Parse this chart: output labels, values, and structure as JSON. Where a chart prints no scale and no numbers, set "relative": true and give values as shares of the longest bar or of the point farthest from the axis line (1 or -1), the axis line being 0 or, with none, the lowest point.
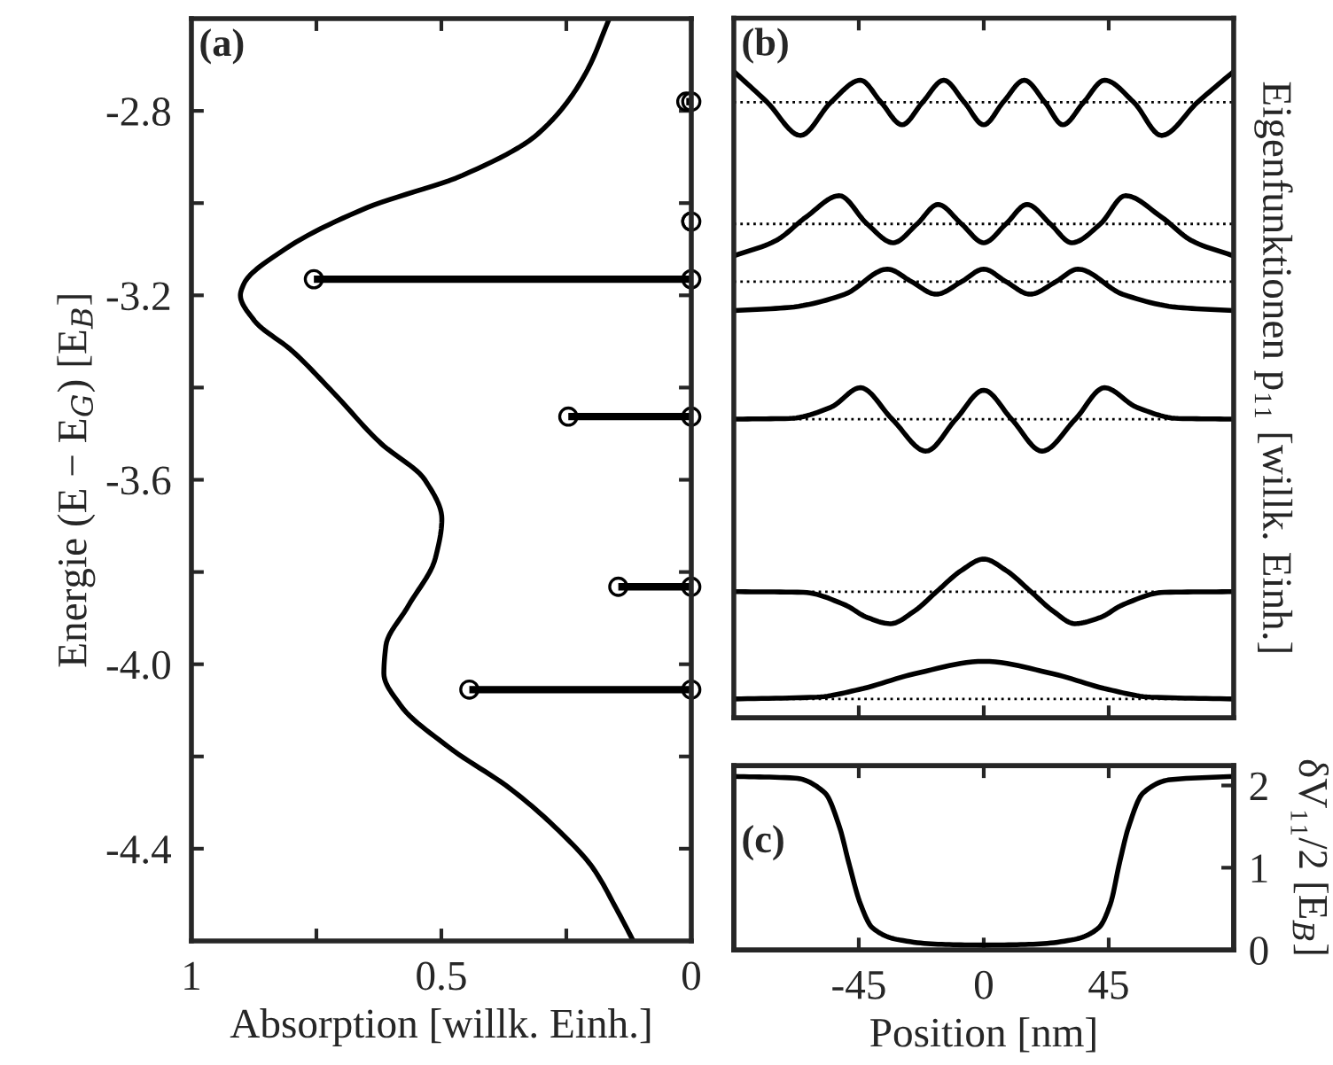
{
  "chart_data": [
    {
      "type": "line",
      "orientation": "horizontal",
      "xlabel": "Absorption [willk. Einh.]",
      "ylabel": "Energie (E − E$_{G}$) [E$_{B}$]",
      "xlim": [
        1,
        0
      ],
      "xticks": [
        1,
        {
          "value": 0.75,
          "label": null
        },
        0.5,
        {
          "value": 0.25,
          "label": null
        },
        0
      ],
      "ylim": [
        -4.6,
        -2.6
      ],
      "yticks": [
        -2.8,
        {
          "value": -3.0,
          "label": null
        },
        -3.2,
        {
          "value": -3.4,
          "label": null
        },
        -3.6,
        {
          "value": -3.8,
          "label": null
        },
        {
          "value": -4.0,
          "label": "-4.0"
        },
        {
          "value": -4.2,
          "label": null
        },
        -4.4
      ],
      "annotations": [
        "(a)"
      ],
      "series": [
        {
          "color": "#000000",
          "x": [
            -2.6,
            -2.72,
            -2.85,
            -2.94,
            -3.01,
            -3.1,
            -3.175,
            -3.2,
            -3.255,
            -3.32,
            -3.41,
            -3.52,
            -3.6,
            -3.685,
            -3.77,
            -3.875,
            -3.96,
            -4.02,
            -4.09,
            -4.18,
            -4.27,
            -4.36,
            -4.44,
            -4.53,
            -4.6
          ],
          "values": [
            0.164,
            0.212,
            0.307,
            0.458,
            0.649,
            0.813,
            0.895,
            0.902,
            0.874,
            0.799,
            0.717,
            0.622,
            0.533,
            0.499,
            0.512,
            0.567,
            0.611,
            0.615,
            0.581,
            0.485,
            0.362,
            0.266,
            0.198,
            0.15,
            0.116
          ]
        },
        {
          "type": "lollipop",
          "color": "#000000",
          "marker": "circle",
          "x": [
            -2.78,
            -3.04,
            -3.165,
            -3.463,
            -3.832,
            -4.055
          ],
          "values": [
            0.01,
            0.0,
            0.755,
            0.246,
            0.146,
            0.444
          ]
        },
        {
          "type": "scatter",
          "color": "#000000",
          "marker": "circle",
          "x": [
            -2.78,
            -3.04,
            -3.165,
            -3.463,
            -3.832,
            -4.055
          ],
          "values": [
            0,
            0,
            0,
            0,
            0,
            0
          ]
        }
      ]
    },
    {
      "type": "line",
      "relative": true,
      "y2label": "Eigenfunktionen p₁₁ [willk. Einh.]",
      "xlim": [
        -90,
        90
      ],
      "xticks": [
        {
          "value": -45,
          "label": null
        },
        {
          "value": 0,
          "label": null
        },
        {
          "value": 45,
          "label": null
        }
      ],
      "tick_labels": false,
      "annotations": [
        "(b)"
      ],
      "ref_lines": [
        {
          "axis": "y",
          "value": 0.951,
          "line_style": "dotted",
          "color": "#000000"
        },
        {
          "axis": "y",
          "value": 0.757,
          "line_style": "dotted",
          "color": "#000000"
        },
        {
          "axis": "y",
          "value": 0.665,
          "line_style": "dotted",
          "color": "#000000"
        },
        {
          "axis": "y",
          "value": 0.446,
          "line_style": "dotted",
          "color": "#000000"
        },
        {
          "axis": "y",
          "value": 0.171,
          "line_style": "dotted",
          "color": "#000000"
        },
        {
          "axis": "y",
          "value": 0.0,
          "line_style": "dotted",
          "color": "#000000"
        }
      ],
      "series": [
        {
          "color": "#000000",
          "x": [
            -90,
            -78,
            -66,
            -55,
            -44.4,
            -37,
            -29.4,
            -22,
            -14.4,
            -7,
            0,
            7,
            14.6,
            22,
            28.5,
            36,
            43.5,
            54,
            64,
            77,
            90
          ],
          "values": [
            1.0,
            0.951,
            0.898,
            0.951,
            0.986,
            0.951,
            0.915,
            0.951,
            0.986,
            0.951,
            0.915,
            0.951,
            0.986,
            0.951,
            0.915,
            0.951,
            0.986,
            0.951,
            0.898,
            0.951,
            1.0
          ]
        },
        {
          "color": "#000000",
          "x": [
            -90,
            -75,
            -64,
            -52,
            -42,
            -32.6,
            -24,
            -16.5,
            -8,
            0,
            8,
            15.6,
            24,
            31.7,
            42,
            51,
            64,
            75,
            90
          ],
          "values": [
            0.706,
            0.73,
            0.768,
            0.802,
            0.757,
            0.727,
            0.757,
            0.788,
            0.757,
            0.727,
            0.757,
            0.788,
            0.757,
            0.727,
            0.757,
            0.802,
            0.768,
            0.73,
            0.706
          ]
        },
        {
          "color": "#000000",
          "x": [
            -90,
            -70,
            -50,
            -34.7,
            -26,
            -17.1,
            -8,
            0,
            8,
            16.7,
            26,
            33.9,
            50,
            70,
            90
          ],
          "values": [
            0.619,
            0.624,
            0.645,
            0.685,
            0.665,
            0.645,
            0.665,
            0.685,
            0.665,
            0.645,
            0.665,
            0.685,
            0.645,
            0.624,
            0.619
          ]
        },
        {
          "color": "#000000",
          "x": [
            -90,
            -70,
            -55,
            -44.4,
            -33,
            -20.8,
            -10,
            0,
            10,
            21,
            33,
            43.5,
            55,
            70,
            90
          ],
          "values": [
            0.446,
            0.447,
            0.465,
            0.496,
            0.446,
            0.395,
            0.446,
            0.492,
            0.446,
            0.395,
            0.446,
            0.496,
            0.465,
            0.447,
            0.446
          ]
        },
        {
          "color": "#000000",
          "x": [
            -90,
            -65,
            -50,
            -42,
            -33.6,
            -25,
            -17,
            -8,
            0,
            8,
            17,
            25,
            32.8,
            42,
            50,
            65,
            90
          ],
          "values": [
            0.171,
            0.17,
            0.15,
            0.13,
            0.12,
            0.14,
            0.171,
            0.205,
            0.223,
            0.205,
            0.171,
            0.14,
            0.12,
            0.13,
            0.15,
            0.17,
            0.171
          ]
        },
        {
          "color": "#000000",
          "x": [
            -90,
            -60,
            -45,
            -25,
            0,
            25,
            45,
            60,
            90
          ],
          "values": [
            0.0,
            0.003,
            0.015,
            0.04,
            0.06,
            0.04,
            0.015,
            0.003,
            0.0
          ]
        }
      ]
    },
    {
      "type": "line",
      "xlabel": "Position [nm]",
      "y2label": "δV₁₁/2 [E$_{B}$]",
      "xlim": [
        -90,
        90
      ],
      "xticks": [
        -45,
        0,
        45
      ],
      "y2lim": [
        0,
        2.24
      ],
      "y2ticks": [
        0,
        1,
        2
      ],
      "annotations": [
        "(c)"
      ],
      "series": [
        {
          "color": "#000000",
          "axis": "y2",
          "x": [
            -90,
            -67.9,
            -57.2,
            -51.9,
            -48.6,
            -44.4,
            -40.1,
            -31.5,
            -16.5,
            0,
            17.8,
            32.8,
            41.4,
            45.6,
            48.9,
            52.1,
            57.4,
            67.1,
            90
          ],
          "values": [
            2.11,
            2.09,
            1.91,
            1.49,
            1.06,
            0.56,
            0.27,
            0.13,
            0.07,
            0.06,
            0.07,
            0.13,
            0.27,
            0.56,
            1.06,
            1.49,
            1.91,
            2.07,
            2.11
          ]
        }
      ]
    }
  ]
}
